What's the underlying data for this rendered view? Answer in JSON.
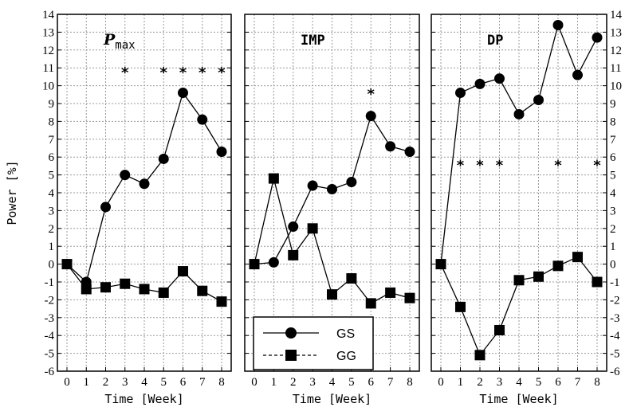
{
  "chart_data": {
    "type": "line",
    "ylabel": "Power [%]",
    "xlabel": "Time [Week]",
    "ylim": [
      -6,
      14
    ],
    "xlim": [
      0,
      8
    ],
    "x": [
      0,
      1,
      2,
      3,
      4,
      5,
      6,
      7,
      8
    ],
    "yticks": [
      "-6",
      "-5",
      "-4",
      "-3",
      "-2",
      "-1",
      "0",
      "1",
      "2",
      "3",
      "4",
      "5",
      "6",
      "7",
      "8",
      "9",
      "10",
      "11",
      "12",
      "13",
      "14"
    ],
    "xticks": [
      "0",
      "1",
      "2",
      "3",
      "4",
      "5",
      "6",
      "7",
      "8"
    ],
    "grid": true,
    "legend": {
      "placement": "bottom-left of middle panel",
      "entries": [
        {
          "name": "GS",
          "marker": "circle",
          "line": "solid"
        },
        {
          "name": "GG",
          "marker": "square",
          "line": "dashed"
        }
      ]
    },
    "panels": [
      {
        "title": "P",
        "title_sub": "max",
        "series": [
          {
            "name": "GS",
            "values": [
              0,
              -1.0,
              3.2,
              5.0,
              4.5,
              5.9,
              9.6,
              8.1,
              6.3
            ]
          },
          {
            "name": "GG",
            "values": [
              0,
              -1.4,
              -1.3,
              -1.1,
              -1.4,
              -1.6,
              -0.4,
              -1.5,
              -2.1
            ]
          }
        ],
        "significance": {
          "marker": "*",
          "y": 11,
          "x": [
            3,
            5,
            6,
            7,
            8
          ]
        }
      },
      {
        "title": "IMP",
        "title_sub": "",
        "series": [
          {
            "name": "GS",
            "values": [
              0,
              0.1,
              2.1,
              4.4,
              4.2,
              4.6,
              8.3,
              6.6,
              6.3
            ]
          },
          {
            "name": "GG",
            "values": [
              0,
              4.8,
              0.5,
              2.0,
              -1.7,
              -0.8,
              -2.2,
              -1.6,
              -1.9
            ]
          }
        ],
        "significance": {
          "marker": "*",
          "y": 9.8,
          "x": [
            6
          ]
        }
      },
      {
        "title": "DP",
        "title_sub": "",
        "series": [
          {
            "name": "GS",
            "values": [
              0,
              9.6,
              10.1,
              10.4,
              8.4,
              9.2,
              13.4,
              10.6,
              12.7
            ]
          },
          {
            "name": "GG",
            "values": [
              0,
              -2.4,
              -5.1,
              -3.7,
              -0.9,
              -0.7,
              -0.1,
              0.4,
              -1.0
            ]
          }
        ],
        "significance": {
          "marker": "*",
          "y": 5.8,
          "x": [
            1,
            2,
            3,
            6,
            8
          ]
        }
      }
    ]
  }
}
